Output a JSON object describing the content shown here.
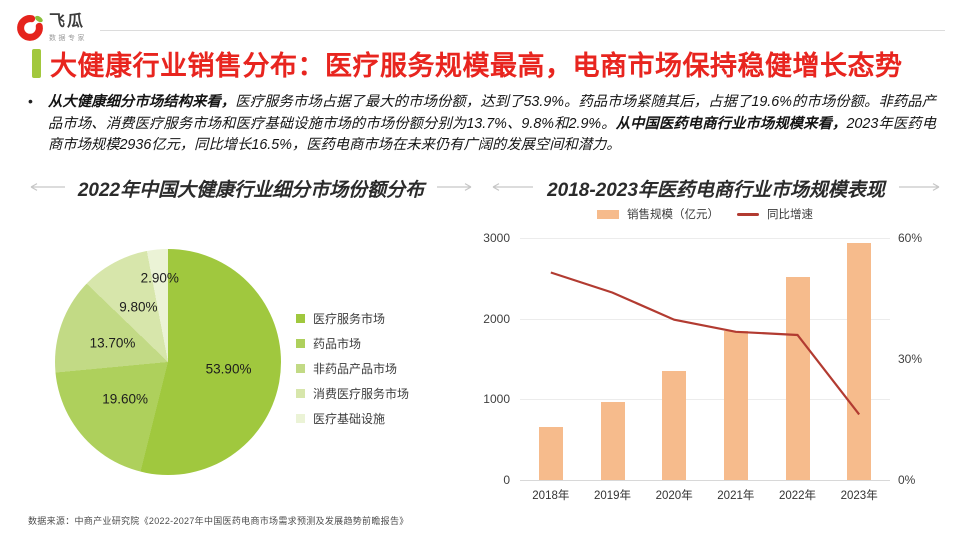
{
  "header": {
    "brand": "飞瓜",
    "brand_tagline": "数据专家",
    "title": "大健康行业销售分布：医疗服务规模最高，电商市场保持稳健增长态势",
    "accent_color": "#a2c83d",
    "title_color": "#e8251f"
  },
  "summary": {
    "bullet": "•",
    "bold1": "从大健康细分市场结构来看，",
    "text1": "医疗服务市场占据了最大的市场份额，达到了53.9%。药品市场紧随其后，占据了19.6%的市场份额。非药品产品市场、消费医疗服务市场和医疗基础设施市场的市场份额分别为13.7%、9.8%和2.9%。",
    "bold2": "从中国医药电商行业市场规模来看，",
    "text2": "2023年医药电商市场规模2936亿元，同比增长16.5%，医药电商市场在未来仍有广阔的发展空间和潜力。"
  },
  "chart_data": [
    {
      "type": "pie",
      "title": "2022年中国大健康行业细分市场份额分布",
      "labels": [
        "医疗服务市场",
        "药品市场",
        "非药品产品市场",
        "消费医疗服务市场",
        "医疗基础设施"
      ],
      "values": [
        53.9,
        19.6,
        13.7,
        9.8,
        2.9
      ],
      "value_labels": [
        "53.90%",
        "19.60%",
        "13.70%",
        "9.80%",
        "2.90%"
      ],
      "colors": [
        "#a0c83e",
        "#aed05c",
        "#c2da85",
        "#d7e6ab",
        "#ebf3d6"
      ],
      "legend_position": "right",
      "start_angle_deg": 0
    },
    {
      "type": "bar+line",
      "title": "2018-2023年医药电商行业市场规模表现",
      "categories": [
        "2018年",
        "2019年",
        "2020年",
        "2021年",
        "2022年",
        "2023年"
      ],
      "series": [
        {
          "name": "销售规模（亿元）",
          "type": "bar",
          "axis": "left",
          "color": "#f6bb8c",
          "values": [
            657,
            964,
            1350,
            1850,
            2520,
            2936
          ]
        },
        {
          "name": "同比增速",
          "type": "line",
          "axis": "right",
          "color": "#b23b31",
          "values": [
            51.7,
            46.7,
            40.0,
            37.0,
            36.2,
            16.5
          ]
        }
      ],
      "left_axis": {
        "ticks": [
          "0",
          "1000",
          "2000",
          "3000"
        ],
        "min": 0,
        "max": 3000
      },
      "right_axis": {
        "ticks": [
          "0%",
          "30%",
          "60%"
        ],
        "min": 0,
        "max": 60
      },
      "grid": true,
      "legend_position": "top"
    }
  ],
  "footer": {
    "source": "数据来源：中商产业研究院《2022-2027年中国医药电商市场需求预测及发展趋势前瞻报告》"
  }
}
